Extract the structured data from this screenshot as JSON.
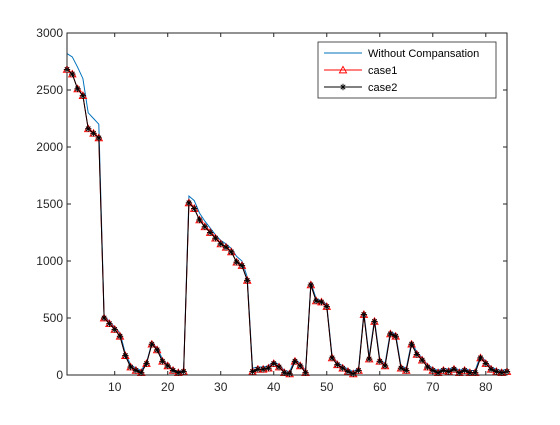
{
  "chart_data": {
    "type": "line",
    "title": "",
    "xlabel": "",
    "ylabel": "",
    "xlim": [
      1,
      84
    ],
    "ylim": [
      0,
      3000
    ],
    "x_ticks": [
      10,
      20,
      30,
      40,
      50,
      60,
      70,
      80
    ],
    "y_ticks": [
      0,
      500,
      1000,
      1500,
      2000,
      2500,
      3000
    ],
    "grid": false,
    "legend_position": "top-right",
    "series": [
      {
        "name": "Without Compansation",
        "color": "#0072BD",
        "marker": "none",
        "x": [
          1,
          2,
          3,
          4,
          5,
          6,
          7,
          8,
          9,
          10,
          11,
          12,
          13,
          14,
          15,
          16,
          17,
          18,
          19,
          20,
          21,
          22,
          23,
          24,
          25,
          26,
          27,
          28,
          29,
          30,
          31,
          32,
          33,
          34,
          35,
          36,
          37,
          38,
          39,
          40,
          41,
          42,
          43,
          44,
          45,
          46,
          47,
          48,
          49,
          50,
          51,
          52,
          53,
          54,
          55,
          56,
          57,
          58,
          59,
          60,
          61,
          62,
          63,
          64,
          65,
          66,
          67,
          68,
          69,
          70,
          71,
          72,
          73,
          74,
          75,
          76,
          77,
          78,
          79,
          80,
          81,
          82,
          83,
          84
        ],
        "values": [
          2820,
          2790,
          2700,
          2600,
          2300,
          2250,
          2200,
          520,
          470,
          420,
          370,
          190,
          90,
          60,
          40,
          110,
          280,
          240,
          140,
          90,
          50,
          30,
          40,
          1570,
          1530,
          1420,
          1350,
          1290,
          1230,
          1180,
          1150,
          1110,
          1040,
          1000,
          860,
          60,
          70,
          70,
          80,
          120,
          90,
          40,
          30,
          140,
          100,
          40,
          810,
          670,
          650,
          620,
          170,
          110,
          80,
          50,
          30,
          60,
          550,
          160,
          490,
          140,
          100,
          380,
          360,
          80,
          60,
          290,
          200,
          150,
          90,
          60,
          40,
          60,
          50,
          70,
          40,
          60,
          40,
          40,
          170,
          120,
          70,
          50,
          40,
          50
        ]
      },
      {
        "name": "case1",
        "color": "#FF0000",
        "marker": "triangle",
        "x": [
          1,
          2,
          3,
          4,
          5,
          6,
          7,
          8,
          9,
          10,
          11,
          12,
          13,
          14,
          15,
          16,
          17,
          18,
          19,
          20,
          21,
          22,
          23,
          24,
          25,
          26,
          27,
          28,
          29,
          30,
          31,
          32,
          33,
          34,
          35,
          36,
          37,
          38,
          39,
          40,
          41,
          42,
          43,
          44,
          45,
          46,
          47,
          48,
          49,
          50,
          51,
          52,
          53,
          54,
          55,
          56,
          57,
          58,
          59,
          60,
          61,
          62,
          63,
          64,
          65,
          66,
          67,
          68,
          69,
          70,
          71,
          72,
          73,
          74,
          75,
          76,
          77,
          78,
          79,
          80,
          81,
          82,
          83,
          84
        ],
        "values": [
          2680,
          2640,
          2510,
          2450,
          2160,
          2120,
          2080,
          500,
          450,
          400,
          340,
          170,
          70,
          40,
          20,
          100,
          270,
          220,
          120,
          80,
          40,
          20,
          30,
          1510,
          1460,
          1360,
          1300,
          1250,
          1200,
          1150,
          1120,
          1080,
          990,
          960,
          830,
          30,
          50,
          50,
          60,
          100,
          70,
          20,
          10,
          120,
          80,
          20,
          790,
          650,
          640,
          600,
          150,
          90,
          60,
          30,
          10,
          40,
          530,
          140,
          470,
          120,
          80,
          360,
          340,
          60,
          40,
          270,
          180,
          130,
          70,
          40,
          20,
          40,
          30,
          50,
          20,
          40,
          20,
          20,
          150,
          100,
          50,
          30,
          20,
          30
        ]
      },
      {
        "name": "case2",
        "color": "#000000",
        "marker": "asterisk",
        "x": [
          1,
          2,
          3,
          4,
          5,
          6,
          7,
          8,
          9,
          10,
          11,
          12,
          13,
          14,
          15,
          16,
          17,
          18,
          19,
          20,
          21,
          22,
          23,
          24,
          25,
          26,
          27,
          28,
          29,
          30,
          31,
          32,
          33,
          34,
          35,
          36,
          37,
          38,
          39,
          40,
          41,
          42,
          43,
          44,
          45,
          46,
          47,
          48,
          49,
          50,
          51,
          52,
          53,
          54,
          55,
          56,
          57,
          58,
          59,
          60,
          61,
          62,
          63,
          64,
          65,
          66,
          67,
          68,
          69,
          70,
          71,
          72,
          73,
          74,
          75,
          76,
          77,
          78,
          79,
          80,
          81,
          82,
          83,
          84
        ],
        "values": [
          2680,
          2640,
          2510,
          2450,
          2160,
          2120,
          2080,
          500,
          450,
          400,
          340,
          170,
          70,
          40,
          20,
          100,
          270,
          220,
          120,
          80,
          40,
          20,
          30,
          1510,
          1460,
          1360,
          1300,
          1250,
          1200,
          1150,
          1120,
          1080,
          990,
          960,
          830,
          30,
          50,
          50,
          60,
          100,
          70,
          20,
          10,
          120,
          80,
          20,
          790,
          650,
          640,
          600,
          150,
          90,
          60,
          30,
          10,
          40,
          530,
          140,
          470,
          120,
          80,
          360,
          340,
          60,
          40,
          270,
          180,
          130,
          70,
          40,
          20,
          40,
          30,
          50,
          20,
          40,
          20,
          20,
          150,
          100,
          50,
          30,
          20,
          30
        ]
      }
    ]
  }
}
